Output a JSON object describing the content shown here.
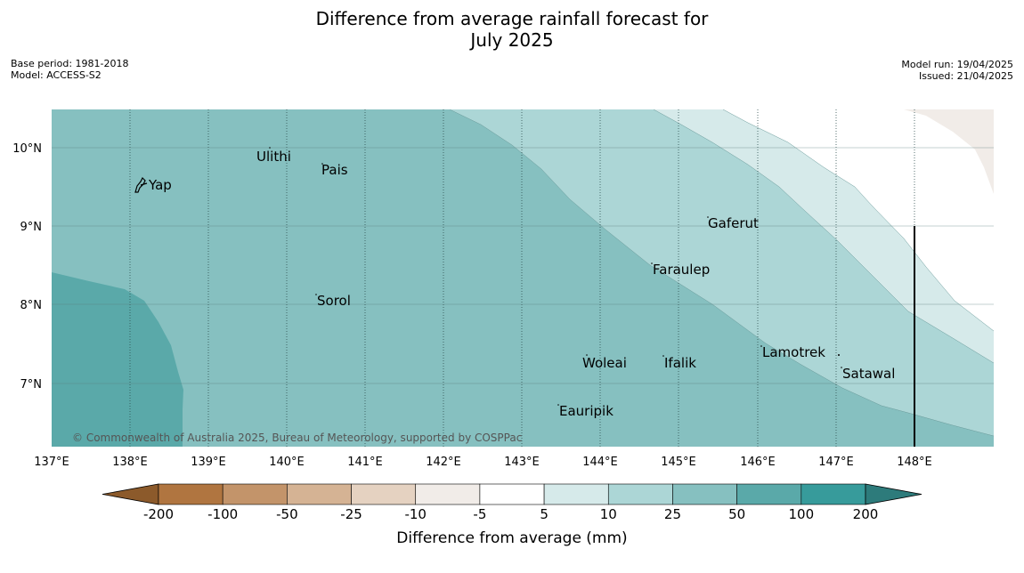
{
  "title_line1": "Difference from average rainfall forecast for",
  "title_line2": "July 2025",
  "base_period": "Base period: 1981-2018",
  "model": "Model: ACCESS-S2",
  "model_run": "Model run: 19/04/2025",
  "issued": "Issued: 21/04/2025",
  "credit": "© Commonwealth of Australia 2025, Bureau of Meteorology, supported by COSPPac",
  "map": {
    "lon_ticks": [
      "137°E",
      "138°E",
      "139°E",
      "140°E",
      "141°E",
      "142°E",
      "143°E",
      "144°E",
      "145°E",
      "146°E",
      "147°E",
      "148°E"
    ],
    "lat_ticks": [
      "10°N",
      "9°N",
      "8°N",
      "7°N"
    ],
    "places": [
      {
        "name": "Ulithi"
      },
      {
        "name": "Pais"
      },
      {
        "name": "Yap"
      },
      {
        "name": "Gaferut"
      },
      {
        "name": "Faraulep"
      },
      {
        "name": "Sorol"
      },
      {
        "name": "Lamotrek"
      },
      {
        "name": "Woleai"
      },
      {
        "name": "Ifalik"
      },
      {
        "name": "Satawal"
      },
      {
        "name": "Eauripik"
      }
    ]
  },
  "colorbar": {
    "title": "Difference from average (mm)",
    "labels": [
      "-200",
      "-100",
      "-50",
      "-25",
      "-10",
      "-5",
      "5",
      "10",
      "25",
      "50",
      "100",
      "200"
    ],
    "colors": {
      "below_min": "#8c5a2b",
      "bins": [
        "#b07540",
        "#c3946a",
        "#d5b394",
        "#e5d2c1",
        "#f1ece8",
        "#ffffff",
        "#d6eaea",
        "#acd6d6",
        "#86c0c0",
        "#5aa9a9",
        "#379b9b"
      ],
      "above_max": "#2d7b7b"
    }
  }
}
